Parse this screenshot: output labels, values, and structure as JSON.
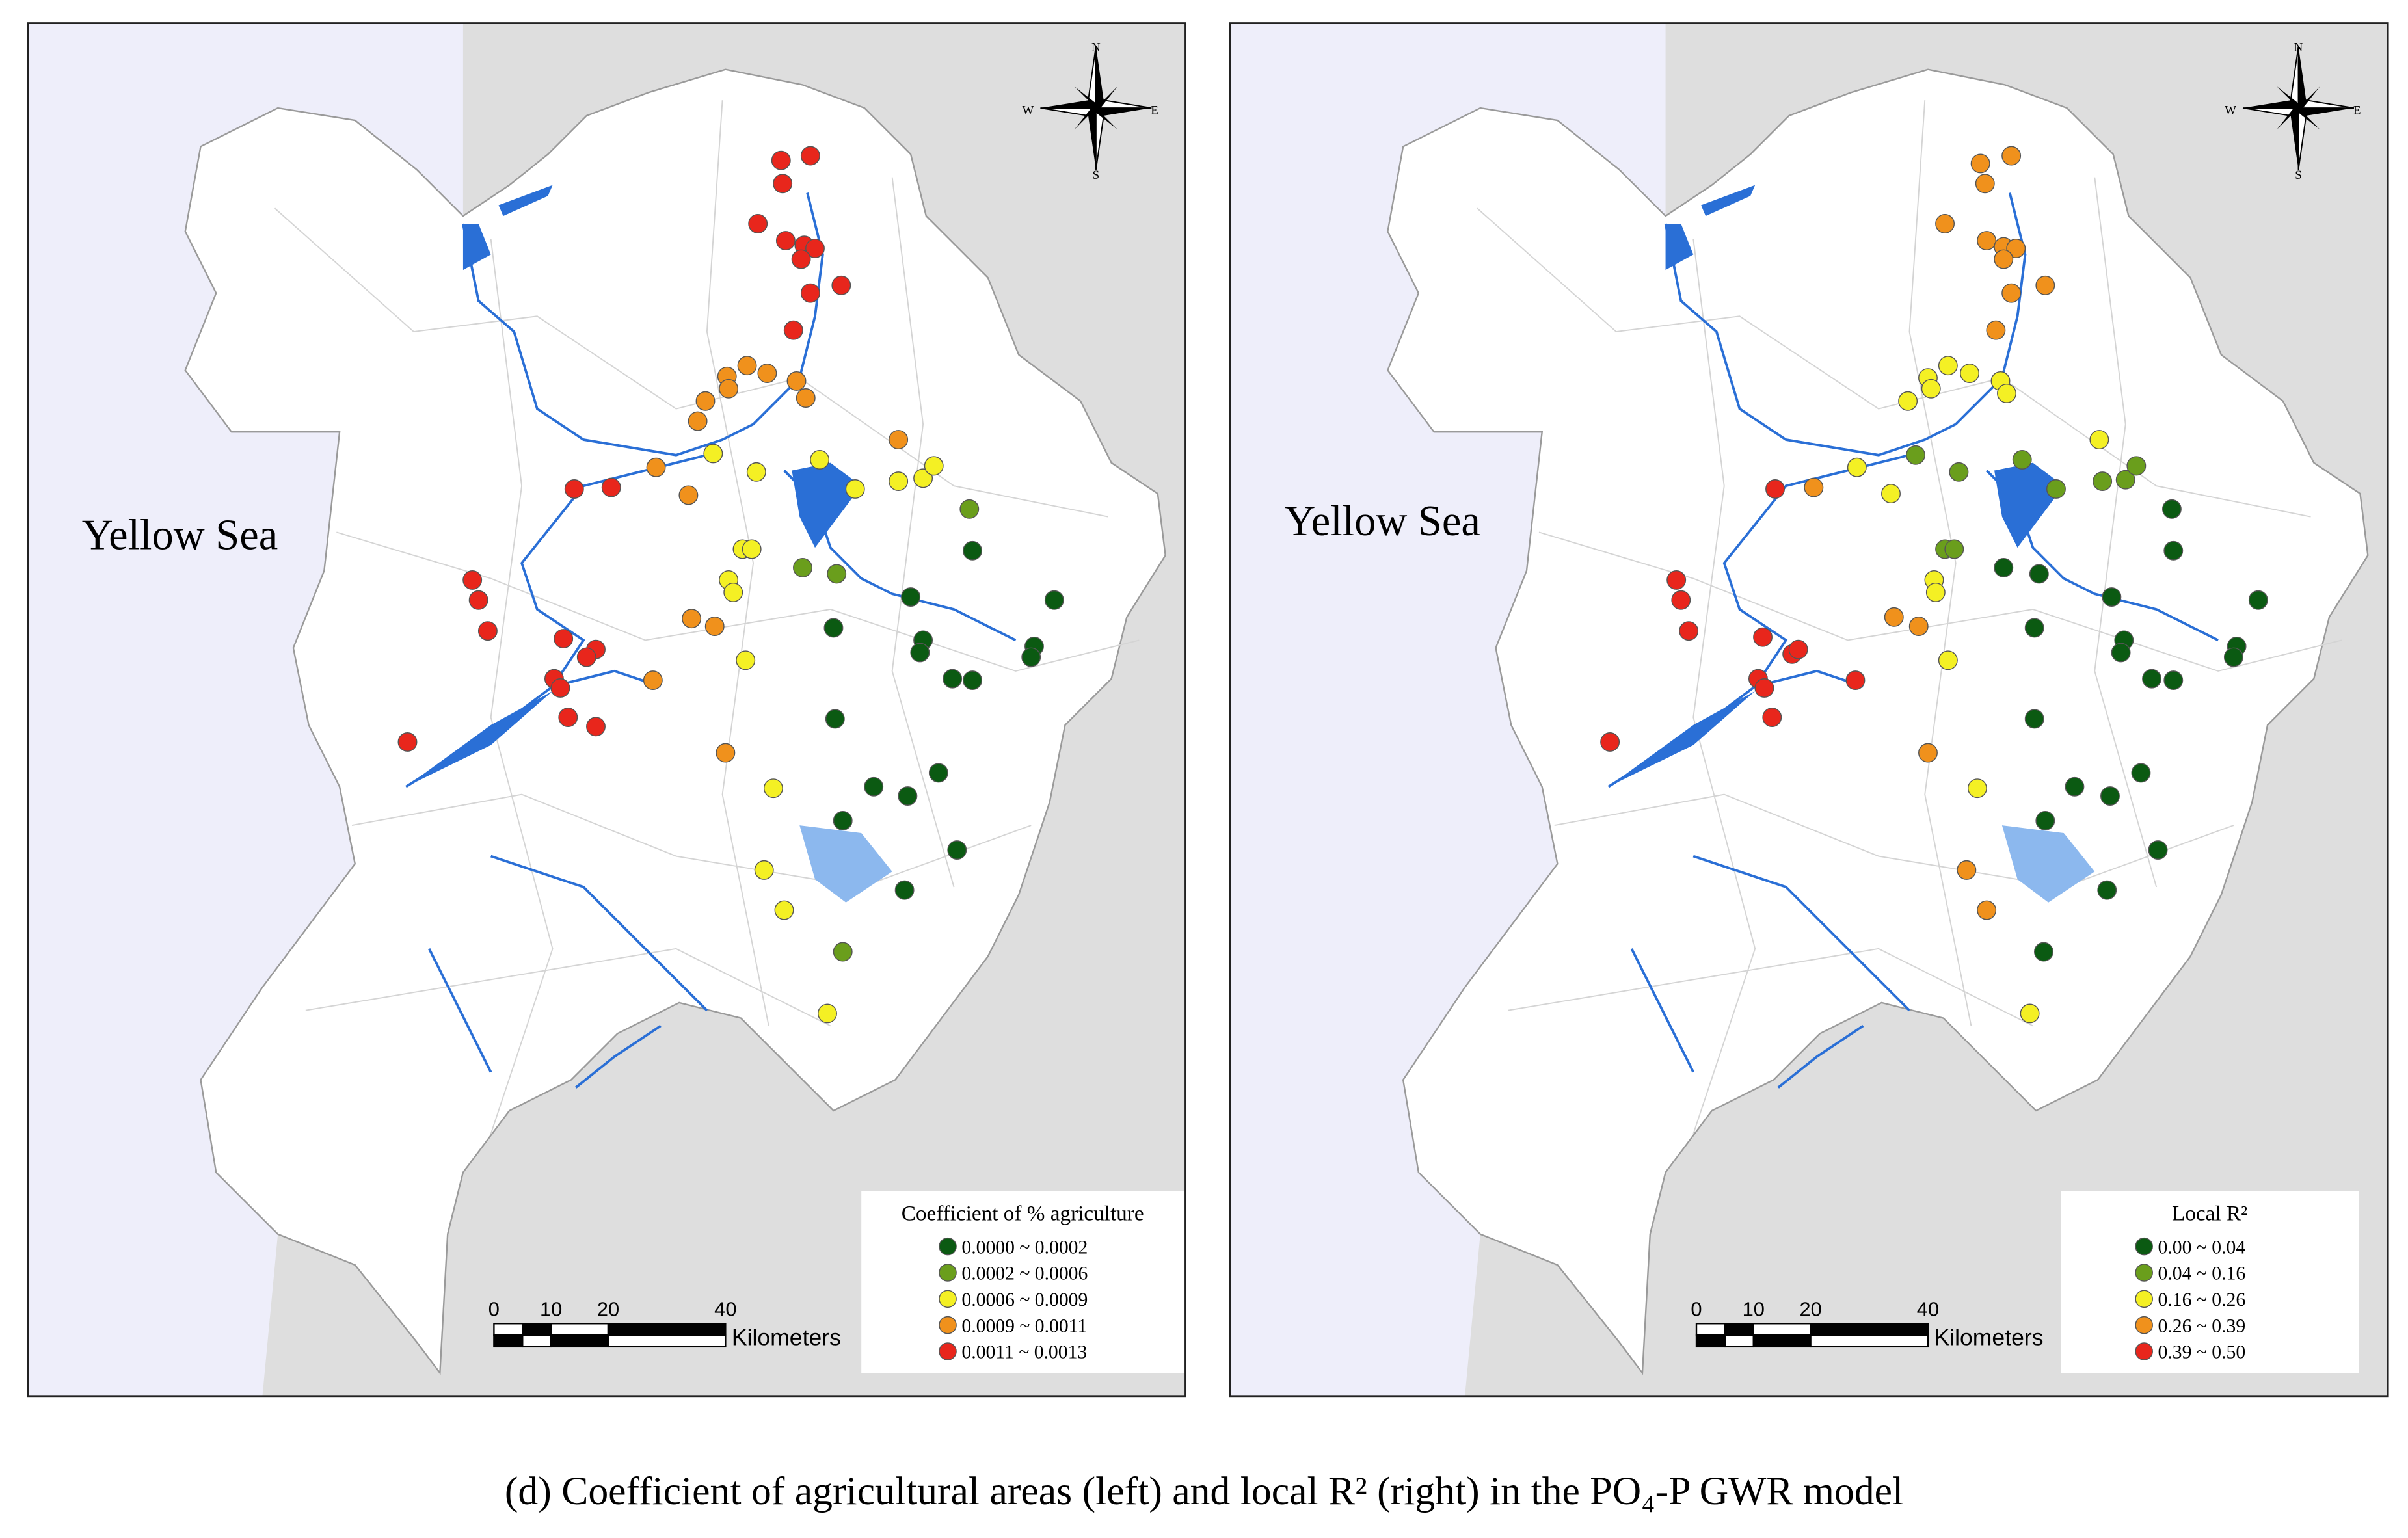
{
  "panels": [
    {
      "sea_label": "Yellow Sea",
      "legend_title": "Coefficient of % agriculture",
      "legend_items": [
        {
          "label": "0.0000 ~ 0.0002",
          "color": "#0b5a12"
        },
        {
          "label": "0.0002 ~ 0.0006",
          "color": "#6a9e1c"
        },
        {
          "label": "0.0006 ~ 0.0009",
          "color": "#f4f024"
        },
        {
          "label": "0.0009 ~ 0.0011",
          "color": "#f0911c"
        },
        {
          "label": "0.0011 ~ 0.0013",
          "color": "#e8261c"
        }
      ]
    },
    {
      "sea_label": "Yellow Sea",
      "legend_title": "Local R²",
      "legend_items": [
        {
          "label": "0.00 ~ 0.04",
          "color": "#0b5a12"
        },
        {
          "label": "0.04 ~ 0.16",
          "color": "#6a9e1c"
        },
        {
          "label": "0.16 ~ 0.26",
          "color": "#f4f024"
        },
        {
          "label": "0.26 ~ 0.39",
          "color": "#f0911c"
        },
        {
          "label": "0.39 ~ 0.50",
          "color": "#e8261c"
        }
      ]
    }
  ],
  "scale_bar": {
    "labels": [
      "0",
      "10",
      "20",
      "40"
    ],
    "unit": "Kilometers"
  },
  "compass": {
    "n": "N",
    "s": "S",
    "e": "E",
    "w": "W"
  },
  "caption": "(d) Coefficient of agricultural areas (left) and local R² (right) in the PO₄-P GWR model"
}
